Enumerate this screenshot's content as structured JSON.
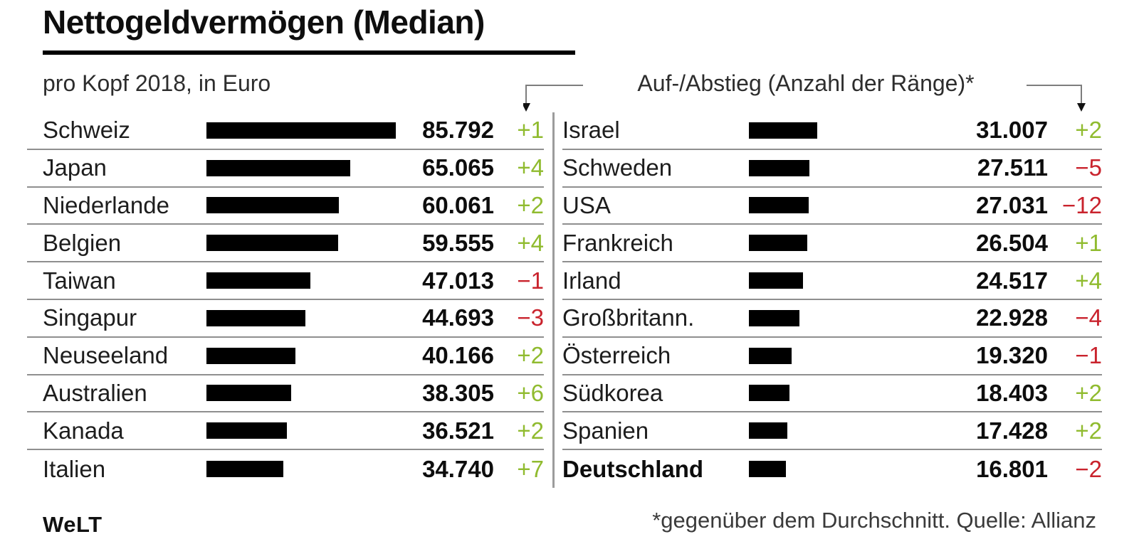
{
  "header": {
    "title": "Nettogeldvermögen (Median)",
    "subtitle": "pro Kopf 2018, in Euro",
    "annotation": "Auf-/Abstieg (Anzahl der Ränge)*"
  },
  "footer": {
    "logo": "WeLT",
    "source_note": "*gegenüber dem Durchschnitt. Quelle: Allianz"
  },
  "colors": {
    "bar": "#000000",
    "positive": "#90BB2F",
    "negative": "#C9232D",
    "rule": "#8f8f8f"
  },
  "chart_data": {
    "type": "bar",
    "title": "Nettogeldvermögen (Median)",
    "subtitle": "pro Kopf 2018, in Euro",
    "annotation": "Auf-/Abstieg (Anzahl der Ränge)*",
    "unit": "Euro pro Kopf",
    "year": "2018",
    "value_axis_max": 85792,
    "legend_position": "none",
    "grid": false,
    "columns": {
      "left": {
        "rows": [
          {
            "label": "Schweiz",
            "value": 85792,
            "value_display": "85.792",
            "change": "+1"
          },
          {
            "label": "Japan",
            "value": 65065,
            "value_display": "65.065",
            "change": "+4"
          },
          {
            "label": "Niederlande",
            "value": 60061,
            "value_display": "60.061",
            "change": "+2"
          },
          {
            "label": "Belgien",
            "value": 59555,
            "value_display": "59.555",
            "change": "+4"
          },
          {
            "label": "Taiwan",
            "value": 47013,
            "value_display": "47.013",
            "change": "−1"
          },
          {
            "label": "Singapur",
            "value": 44693,
            "value_display": "44.693",
            "change": "−3"
          },
          {
            "label": "Neuseeland",
            "value": 40166,
            "value_display": "40.166",
            "change": "+2"
          },
          {
            "label": "Australien",
            "value": 38305,
            "value_display": "38.305",
            "change": "+6"
          },
          {
            "label": "Kanada",
            "value": 36521,
            "value_display": "36.521",
            "change": "+2"
          },
          {
            "label": "Italien",
            "value": 34740,
            "value_display": "34.740",
            "change": "+7"
          }
        ]
      },
      "right": {
        "rows": [
          {
            "label": "Israel",
            "value": 31007,
            "value_display": "31.007",
            "change": "+2"
          },
          {
            "label": "Schweden",
            "value": 27511,
            "value_display": "27.511",
            "change": "−5"
          },
          {
            "label": "USA",
            "value": 27031,
            "value_display": "27.031",
            "change": "−12"
          },
          {
            "label": "Frankreich",
            "value": 26504,
            "value_display": "26.504",
            "change": "+1"
          },
          {
            "label": "Irland",
            "value": 24517,
            "value_display": "24.517",
            "change": "+4"
          },
          {
            "label": "Großbritann.",
            "value": 22928,
            "value_display": "22.928",
            "change": "−4"
          },
          {
            "label": "Österreich",
            "value": 19320,
            "value_display": "19.320",
            "change": "−1"
          },
          {
            "label": "Südkorea",
            "value": 18403,
            "value_display": "18.403",
            "change": "+2"
          },
          {
            "label": "Spanien",
            "value": 17428,
            "value_display": "17.428",
            "change": "+2"
          },
          {
            "label": "Deutschland",
            "value": 16801,
            "value_display": "16.801",
            "change": "−2",
            "bold": true
          }
        ]
      }
    }
  }
}
